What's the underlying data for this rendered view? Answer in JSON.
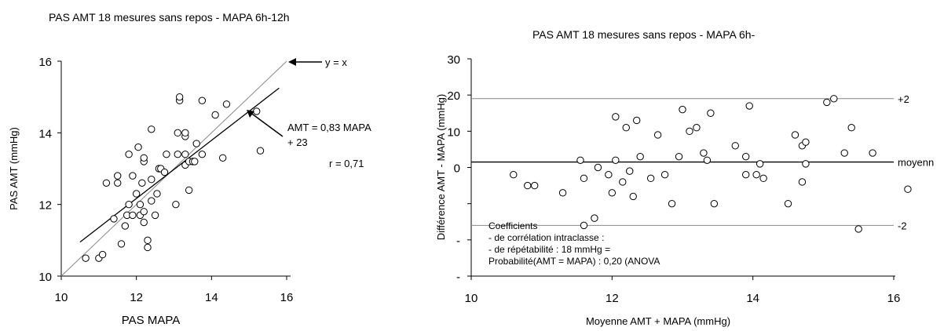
{
  "chart_data": [
    {
      "type": "scatter",
      "title": "PAS AMT 18 mesures sans repos - MAPA 6h-12h",
      "xlabel": "PAS MAPA",
      "ylabel": "PAS AMT (mmHg)",
      "xlim": [
        10,
        16
      ],
      "ylim": [
        10,
        16
      ],
      "xticks": [
        "10",
        "12",
        "14",
        "16"
      ],
      "yticks": [
        "10",
        "12",
        "14",
        "16"
      ],
      "grid": false,
      "annotations": {
        "identity": "y = x",
        "regression_line1": "AMT = 0,83 MAPA",
        "regression_line2": "+ 23",
        "correlation": "r = 0,71"
      },
      "identity_line": {
        "x": [
          10,
          16
        ],
        "y": [
          10,
          16
        ]
      },
      "regression_line": {
        "x": [
          10.5,
          15.8
        ],
        "y": [
          10.95,
          15.25
        ]
      },
      "points": [
        [
          10.65,
          10.5
        ],
        [
          11.0,
          10.5
        ],
        [
          11.1,
          10.6
        ],
        [
          11.2,
          12.6
        ],
        [
          11.4,
          11.6
        ],
        [
          11.5,
          12.6
        ],
        [
          11.5,
          12.8
        ],
        [
          11.6,
          10.9
        ],
        [
          11.7,
          11.4
        ],
        [
          11.75,
          11.7
        ],
        [
          11.8,
          12.0
        ],
        [
          11.8,
          13.4
        ],
        [
          11.9,
          11.7
        ],
        [
          11.9,
          12.8
        ],
        [
          12.0,
          12.3
        ],
        [
          12.05,
          13.6
        ],
        [
          12.1,
          11.7
        ],
        [
          12.1,
          12.0
        ],
        [
          12.15,
          12.6
        ],
        [
          12.2,
          11.5
        ],
        [
          12.2,
          11.8
        ],
        [
          12.2,
          13.2
        ],
        [
          12.2,
          13.3
        ],
        [
          12.3,
          10.8
        ],
        [
          12.3,
          11.0
        ],
        [
          12.4,
          12.1
        ],
        [
          12.4,
          12.7
        ],
        [
          12.4,
          14.1
        ],
        [
          12.5,
          11.7
        ],
        [
          12.55,
          12.3
        ],
        [
          12.6,
          13.0
        ],
        [
          12.65,
          13.0
        ],
        [
          12.75,
          12.9
        ],
        [
          12.8,
          13.4
        ],
        [
          13.05,
          12.0
        ],
        [
          13.1,
          13.4
        ],
        [
          13.1,
          14.0
        ],
        [
          13.15,
          14.9
        ],
        [
          13.15,
          15.0
        ],
        [
          13.3,
          13.1
        ],
        [
          13.3,
          13.4
        ],
        [
          13.3,
          13.9
        ],
        [
          13.3,
          14.0
        ],
        [
          13.4,
          12.4
        ],
        [
          13.4,
          13.2
        ],
        [
          13.5,
          13.2
        ],
        [
          13.55,
          13.2
        ],
        [
          13.6,
          13.7
        ],
        [
          13.75,
          13.4
        ],
        [
          13.75,
          14.9
        ],
        [
          14.1,
          14.5
        ],
        [
          14.3,
          13.3
        ],
        [
          14.4,
          14.8
        ],
        [
          15.2,
          14.6
        ],
        [
          15.3,
          13.5
        ]
      ]
    },
    {
      "type": "scatter",
      "title": "PAS AMT 18 mesures sans repos - MAPA 6h-",
      "xlabel": "Moyenne AMT + MAPA (mmHg)",
      "ylabel": "Différence AMT - MAPA (mmHg)",
      "xlim": [
        10,
        16
      ],
      "ylim": [
        -30,
        30
      ],
      "xticks": [
        "10",
        "12",
        "14",
        "16"
      ],
      "yticks": [
        {
          "value": 30,
          "label": "30"
        },
        {
          "value": 20,
          "label": "20"
        },
        {
          "value": 10,
          "label": "10"
        },
        {
          "value": 0,
          "label": "0"
        },
        {
          "value": -10,
          "label": ""
        },
        {
          "value": -20,
          "label": "-"
        },
        {
          "value": -30,
          "label": "-"
        }
      ],
      "grid": false,
      "reference_lines": [
        {
          "y": 19,
          "label": "+2"
        },
        {
          "y": 1.5,
          "label": "moyenn"
        },
        {
          "y": -16,
          "label": "-2"
        }
      ],
      "legend_box": {
        "line1": "Coefficients",
        "line2": "- de corrélation intraclasse :",
        "line3": "- de répétabilité : 18 mmHg =",
        "line4": "Probabilité(AMT = MAPA) : 0,20 (ANOVA"
      },
      "points": [
        [
          10.6,
          -2
        ],
        [
          10.8,
          -5
        ],
        [
          10.9,
          -5
        ],
        [
          11.3,
          -7
        ],
        [
          11.55,
          2
        ],
        [
          11.6,
          -3
        ],
        [
          11.6,
          -16
        ],
        [
          11.75,
          -14
        ],
        [
          11.8,
          0
        ],
        [
          11.95,
          -2
        ],
        [
          12.0,
          -7
        ],
        [
          12.05,
          2
        ],
        [
          12.05,
          14
        ],
        [
          12.15,
          -4
        ],
        [
          12.2,
          11
        ],
        [
          12.25,
          -1
        ],
        [
          12.3,
          -8
        ],
        [
          12.35,
          13
        ],
        [
          12.4,
          3
        ],
        [
          12.55,
          -3
        ],
        [
          12.65,
          9
        ],
        [
          12.75,
          -2
        ],
        [
          12.85,
          -10
        ],
        [
          12.95,
          3
        ],
        [
          13.0,
          16
        ],
        [
          13.1,
          10
        ],
        [
          13.2,
          11
        ],
        [
          13.3,
          4
        ],
        [
          13.35,
          2
        ],
        [
          13.4,
          15
        ],
        [
          13.45,
          -10
        ],
        [
          13.75,
          6
        ],
        [
          13.9,
          3
        ],
        [
          13.9,
          -2
        ],
        [
          13.95,
          17
        ],
        [
          14.05,
          -2
        ],
        [
          14.1,
          1
        ],
        [
          14.15,
          -3
        ],
        [
          14.5,
          -10
        ],
        [
          14.6,
          9
        ],
        [
          14.7,
          6
        ],
        [
          14.7,
          -4
        ],
        [
          14.75,
          7
        ],
        [
          14.75,
          1
        ],
        [
          15.05,
          18
        ],
        [
          15.15,
          19
        ],
        [
          15.3,
          4
        ],
        [
          15.4,
          11
        ],
        [
          15.5,
          -17
        ],
        [
          15.7,
          4
        ],
        [
          16.2,
          -6
        ]
      ]
    }
  ]
}
